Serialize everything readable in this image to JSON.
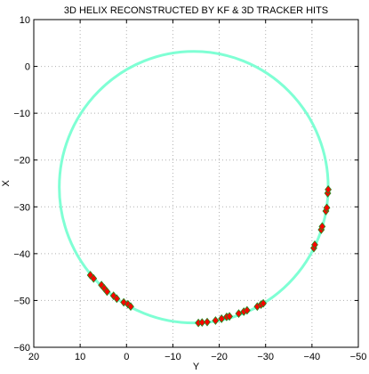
{
  "chart_data": {
    "type": "scatter",
    "title": "3D HELIX RECONSTRUCTED BY KF & 3D TRACKER HITS",
    "xlabel": "Y",
    "ylabel": "X",
    "xlim": [
      20,
      -50
    ],
    "ylim": [
      -60,
      10
    ],
    "x_reversed": true,
    "grid": "dotted",
    "x_ticks": [
      20,
      10,
      0,
      -10,
      -20,
      -30,
      -40,
      -50
    ],
    "y_ticks": [
      10,
      0,
      -10,
      -20,
      -30,
      -40,
      -50,
      -60
    ],
    "x_tick_labels": [
      "20",
      "10",
      "0",
      "−10",
      "−20",
      "−30",
      "−40",
      "−50"
    ],
    "y_tick_labels": [
      "10",
      "0",
      "−10",
      "−20",
      "−30",
      "−40",
      "−50",
      "−60"
    ],
    "helix": {
      "shape": "circle",
      "center": [
        -14.5,
        -25.8
      ],
      "radius": 29,
      "color": "#7fffd4"
    },
    "hits": {
      "color": "#ff0000",
      "marker": "diamond",
      "outline": "#228b22",
      "points": [
        [
          7.8,
          -44.6
        ],
        [
          7.1,
          -45.3
        ],
        [
          5.4,
          -46.7
        ],
        [
          4.8,
          -47.4
        ],
        [
          4.2,
          -48.1
        ],
        [
          2.8,
          -49.0
        ],
        [
          2.1,
          -49.6
        ],
        [
          0.6,
          -50.4
        ],
        [
          -0.3,
          -50.8
        ],
        [
          -0.9,
          -51.3
        ],
        [
          -15.5,
          -54.8
        ],
        [
          -16.3,
          -54.7
        ],
        [
          -17.4,
          -54.6
        ],
        [
          -19.2,
          -54.3
        ],
        [
          -20.5,
          -53.9
        ],
        [
          -21.6,
          -53.5
        ],
        [
          -22.2,
          -53.4
        ],
        [
          -24.2,
          -52.8
        ],
        [
          -25.3,
          -52.4
        ],
        [
          -26.0,
          -52.1
        ],
        [
          -28.2,
          -51.3
        ],
        [
          -29.0,
          -50.9
        ],
        [
          -29.5,
          -50.6
        ],
        [
          -40.4,
          -38.8
        ],
        [
          -40.6,
          -38.1
        ],
        [
          -42.0,
          -34.9
        ],
        [
          -42.2,
          -34.2
        ],
        [
          -43.0,
          -30.9
        ],
        [
          -43.2,
          -30.2
        ],
        [
          -43.4,
          -27.1
        ],
        [
          -43.5,
          -26.3
        ]
      ]
    }
  }
}
